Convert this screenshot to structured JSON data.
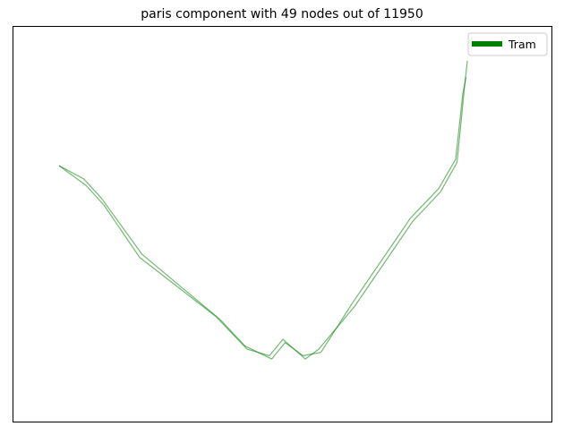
{
  "title": "paris component with 49 nodes out of 11950",
  "legend": {
    "entries": [
      {
        "label": "Tram",
        "color": "#008000"
      }
    ],
    "placement": "upper-right"
  },
  "chart_data": {
    "type": "line",
    "title": "paris component with 49 nodes out of 11950",
    "axes_visible": false,
    "grid": false,
    "series": [
      {
        "name": "Tram",
        "color": "#008000",
        "segments": [
          [
            [
              0.0,
              0.68
            ],
            [
              0.06,
              0.62
            ],
            [
              0.1,
              0.56
            ],
            [
              0.18,
              0.4
            ],
            [
              0.35,
              0.22
            ],
            [
              0.42,
              0.12
            ],
            [
              0.47,
              0.1
            ],
            [
              0.5,
              0.15
            ],
            [
              0.55,
              0.09
            ],
            [
              0.58,
              0.12
            ],
            [
              0.66,
              0.25
            ],
            [
              0.75,
              0.43
            ],
            [
              0.79,
              0.51
            ],
            [
              0.852,
              0.6
            ],
            [
              0.889,
              0.69
            ],
            [
              0.905,
              0.91
            ],
            [
              0.912,
              1.0
            ]
          ],
          [
            [
              0.0,
              0.68
            ],
            [
              0.055,
              0.64
            ],
            [
              0.095,
              0.58
            ],
            [
              0.185,
              0.41
            ],
            [
              0.36,
              0.21
            ],
            [
              0.415,
              0.13
            ],
            [
              0.475,
              0.09
            ],
            [
              0.505,
              0.14
            ],
            [
              0.545,
              0.1
            ],
            [
              0.585,
              0.11
            ],
            [
              0.655,
              0.26
            ],
            [
              0.745,
              0.44
            ],
            [
              0.785,
              0.52
            ],
            [
              0.848,
              0.61
            ],
            [
              0.886,
              0.7
            ],
            [
              0.902,
              0.9
            ],
            [
              0.909,
              0.95
            ]
          ]
        ]
      }
    ]
  }
}
